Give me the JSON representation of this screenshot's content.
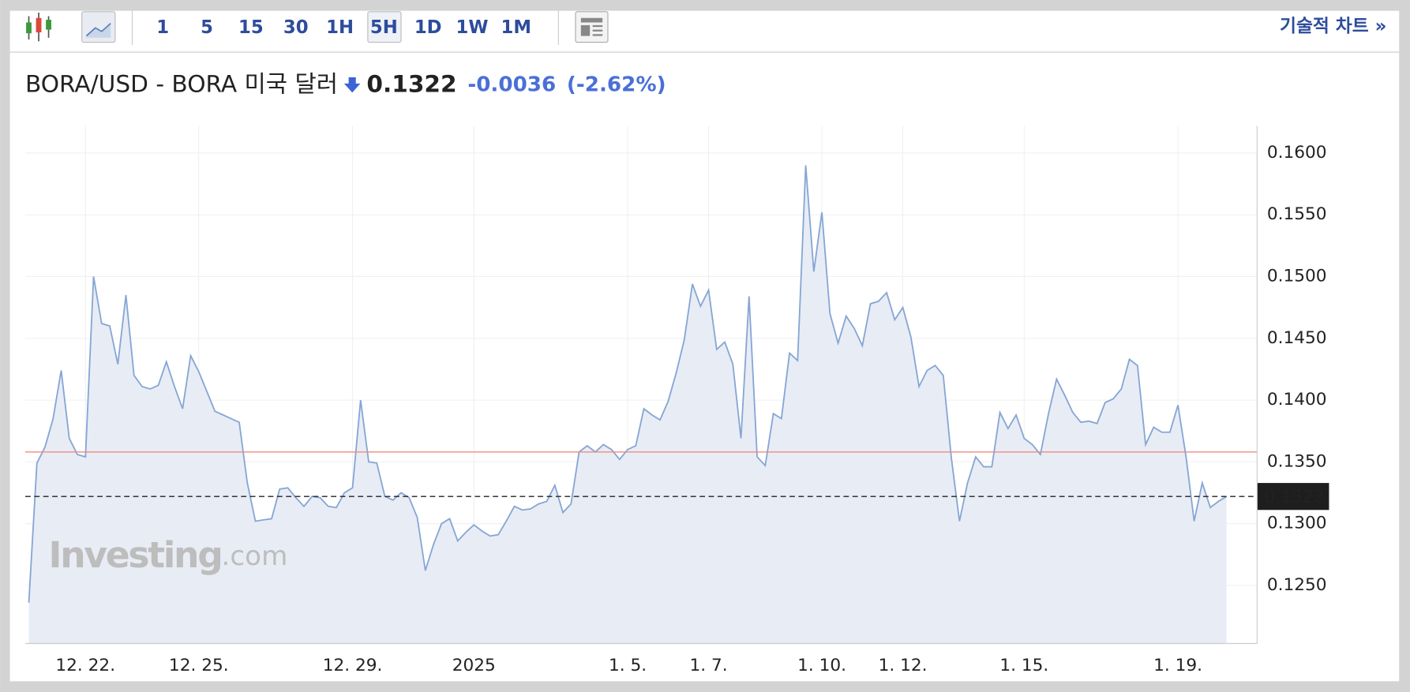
{
  "toolbar": {
    "intervals": [
      "1",
      "5",
      "15",
      "30",
      "1H",
      "5H",
      "1D",
      "1W",
      "1M"
    ],
    "link": "기술적 차트 »"
  },
  "header": {
    "title": "BORA/USD - BORA 미국 달러",
    "price": "0.1322",
    "change": "-0.0036",
    "change_pct": "(-2.62%)"
  },
  "watermark": {
    "brand": "Investing",
    "suffix": ".com"
  },
  "chart_data": {
    "type": "area",
    "color": "#86a6d4",
    "fill": "#e8ecf5",
    "categories": [
      null,
      null,
      null,
      null,
      null,
      null,
      null,
      "12. 22.",
      null,
      null,
      null,
      null,
      null,
      null,
      null,
      null,
      null,
      null,
      null,
      null,
      null,
      "12. 25.",
      null,
      null,
      null,
      null,
      null,
      null,
      null,
      null,
      null,
      null,
      null,
      null,
      null,
      null,
      null,
      null,
      null,
      null,
      "12. 29.",
      null,
      null,
      null,
      null,
      null,
      null,
      null,
      null,
      null,
      null,
      null,
      null,
      null,
      null,
      "2025",
      null,
      null,
      null,
      null,
      null,
      null,
      null,
      null,
      null,
      null,
      null,
      null,
      null,
      null,
      null,
      null,
      null,
      null,
      "1. 5.",
      null,
      null,
      null,
      null,
      null,
      null,
      null,
      null,
      null,
      "1. 7.",
      null,
      null,
      null,
      null,
      null,
      null,
      null,
      null,
      null,
      null,
      null,
      null,
      null,
      "1. 10.",
      null,
      null,
      null,
      null,
      null,
      null,
      null,
      null,
      null,
      "1. 12.",
      null,
      null,
      null,
      null,
      null,
      null,
      null,
      null,
      null,
      null,
      null,
      null,
      null,
      null,
      "1. 15.",
      null,
      null,
      null,
      null,
      null,
      null,
      null,
      null,
      null,
      null,
      null,
      null,
      null,
      null,
      null,
      null,
      null,
      null,
      "1. 19.",
      null,
      null,
      null,
      null,
      null,
      null
    ],
    "values": [
      0.1236,
      0.1349,
      0.1362,
      0.1385,
      0.1424,
      0.1369,
      0.1356,
      0.1354,
      0.15,
      0.1462,
      0.146,
      0.1429,
      0.1485,
      0.142,
      0.1411,
      0.1409,
      0.1412,
      0.1431,
      0.1411,
      0.1393,
      0.1436,
      0.1423,
      0.1407,
      0.1391,
      0.1388,
      0.1385,
      0.1382,
      0.1333,
      0.1302,
      0.1303,
      0.1304,
      0.1328,
      0.1329,
      0.1321,
      0.1314,
      0.1322,
      0.1321,
      0.1314,
      0.1313,
      0.1325,
      0.1329,
      0.14,
      0.135,
      0.1349,
      0.1322,
      0.1319,
      0.1325,
      0.1321,
      0.1305,
      0.1262,
      0.1283,
      0.13,
      0.1304,
      0.1286,
      0.1293,
      0.1299,
      0.1294,
      0.129,
      0.1291,
      0.1302,
      0.1314,
      0.1311,
      0.1312,
      0.1316,
      0.1318,
      0.1331,
      0.1309,
      0.1316,
      0.1358,
      0.1363,
      0.1358,
      0.1364,
      0.136,
      0.1352,
      0.136,
      0.1363,
      0.1393,
      0.1388,
      0.1384,
      0.1399,
      0.1422,
      0.1449,
      0.1494,
      0.1476,
      0.1489,
      0.1441,
      0.1447,
      0.1429,
      0.1369,
      0.1484,
      0.1354,
      0.1347,
      0.1389,
      0.1385,
      0.1438,
      0.1432,
      0.159,
      0.1504,
      0.1552,
      0.147,
      0.1446,
      0.1468,
      0.1458,
      0.1444,
      0.1478,
      0.148,
      0.1487,
      0.1465,
      0.1475,
      0.1451,
      0.1411,
      0.1424,
      0.1428,
      0.142,
      0.1353,
      0.1302,
      0.1333,
      0.1354,
      0.1346,
      0.1346,
      0.139,
      0.1377,
      0.1388,
      0.1369,
      0.1364,
      0.1356,
      0.1389,
      0.1417,
      0.1404,
      0.139,
      0.1382,
      0.1383,
      0.1381,
      0.1398,
      0.1401,
      0.1409,
      0.1433,
      0.1428,
      0.1364,
      0.1378,
      0.1374,
      0.1374,
      0.1396,
      0.1354,
      0.1302,
      0.1333,
      0.1313,
      0.1318,
      0.1322
    ],
    "ylim": [
      0.1203,
      0.1622
    ],
    "yticks": [
      {
        "value": 0.125,
        "label": "0.1250"
      },
      {
        "value": 0.13,
        "label": "0.1300"
      },
      {
        "value": 0.135,
        "label": "0.1350"
      },
      {
        "value": 0.14,
        "label": "0.1400"
      },
      {
        "value": 0.145,
        "label": "0.1450"
      },
      {
        "value": 0.15,
        "label": "0.1500"
      },
      {
        "value": 0.155,
        "label": "0.1550"
      },
      {
        "value": 0.16,
        "label": "0.1600"
      }
    ],
    "reference_line": 0.1358,
    "reference_color": "#f08a80",
    "last_value": 0.1322,
    "grid": true
  }
}
